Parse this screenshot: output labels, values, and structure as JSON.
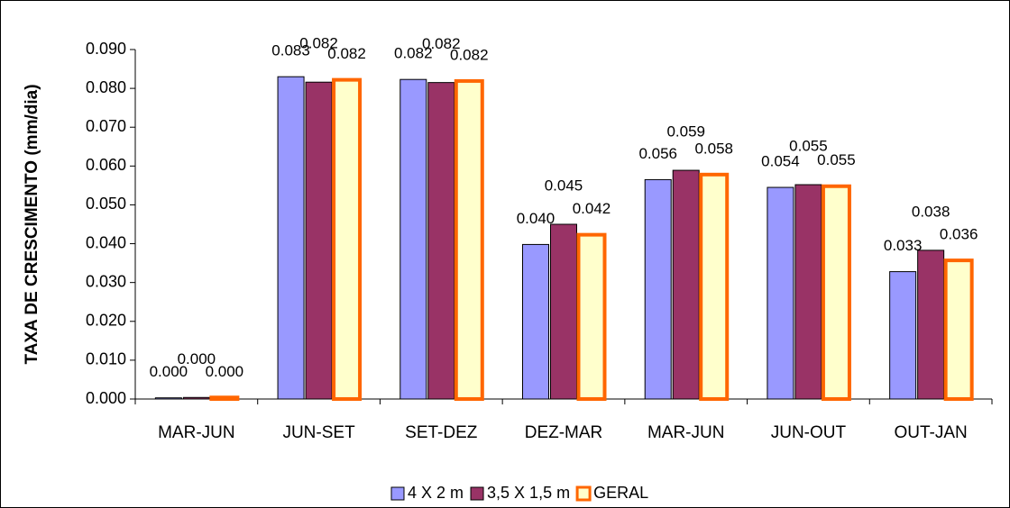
{
  "chart_data": {
    "type": "bar",
    "ylabel": "TAXA DE CRESCIMENTO (mm/dia)",
    "categories": [
      "MAR-JUN",
      "JUN-SET",
      "SET-DEZ",
      "DEZ-MAR",
      "MAR-JUN",
      "JUN-OUT",
      "OUT-JAN"
    ],
    "series": [
      {
        "name": "4 X 2 m",
        "color": "#9999ff",
        "edgecolor": "#000000",
        "values": [
          0.0003,
          0.083,
          0.0823,
          0.0398,
          0.0565,
          0.0545,
          0.0328
        ],
        "value_labels": [
          "0.000",
          "0.083",
          "0.082",
          "0.040",
          "0.056",
          "0.054",
          "0.033"
        ]
      },
      {
        "name": "3,5 X 1,5 m",
        "color": "#993366",
        "edgecolor": "#000000",
        "values": [
          0.0004,
          0.0816,
          0.0815,
          0.045,
          0.0589,
          0.0552,
          0.0383
        ],
        "value_labels": [
          "0.000",
          "0.082",
          "0.082",
          "0.045",
          "0.059",
          "0.055",
          "0.038"
        ]
      },
      {
        "name": "GERAL",
        "color": "#ffffcc",
        "edgecolor": "#ff6600",
        "values": [
          0.0004,
          0.0822,
          0.0819,
          0.0423,
          0.0578,
          0.0548,
          0.0357
        ],
        "value_labels": [
          "0.000",
          "0.082",
          "0.082",
          "0.042",
          "0.058",
          "0.055",
          "0.036"
        ]
      }
    ],
    "ylim": [
      0,
      0.09
    ],
    "yticks": [
      {
        "value": 0,
        "label": "0.000"
      },
      {
        "value": 0.01,
        "label": "0.010"
      },
      {
        "value": 0.02,
        "label": "0.020"
      },
      {
        "value": 0.03,
        "label": "0.030"
      },
      {
        "value": 0.04,
        "label": "0.040"
      },
      {
        "value": 0.05,
        "label": "0.050"
      },
      {
        "value": 0.06,
        "label": "0.060"
      },
      {
        "value": 0.07,
        "label": "0.070"
      },
      {
        "value": 0.08,
        "label": "0.080"
      },
      {
        "value": 0.09,
        "label": "0.090"
      }
    ],
    "legend": "bottom"
  }
}
